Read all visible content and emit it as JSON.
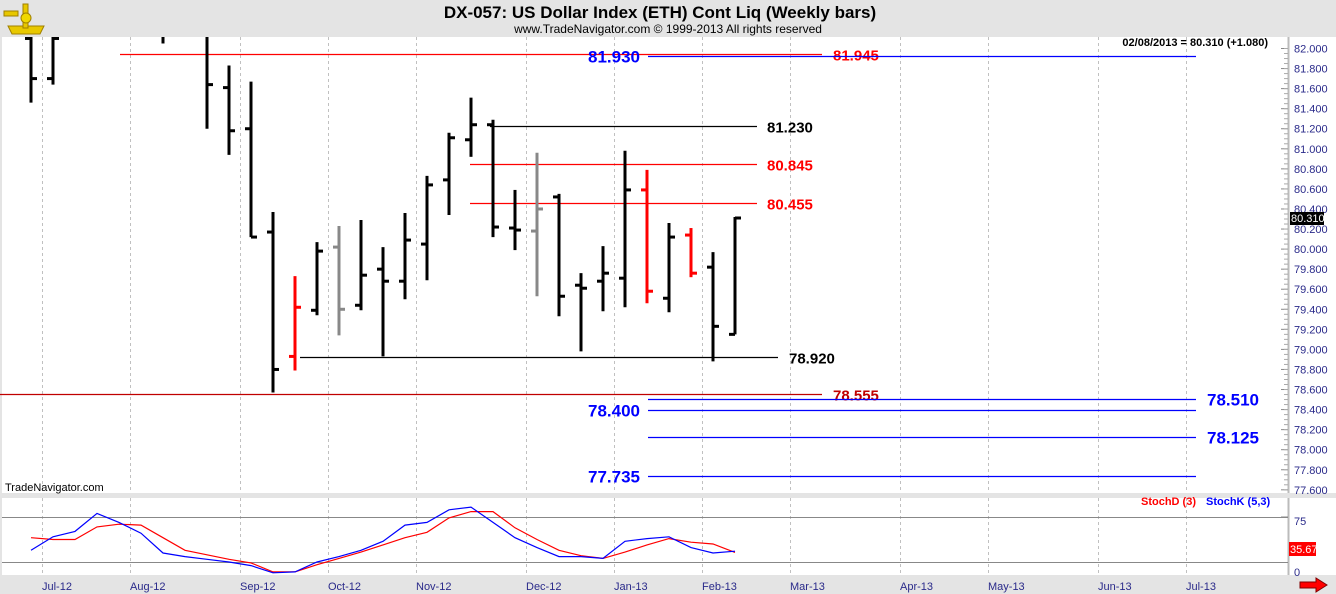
{
  "header": {
    "title": "DX-057:  US Dollar Index (ETH) Cont Liq  (Weekly bars)",
    "subtitle": "www.TradeNavigator.com © 1999-2013 All rights reserved",
    "logo": "sextant-logo"
  },
  "readout": "02/08/2013 = 80.310 (+1.080)",
  "watermark": "TradeNavigator.com",
  "last_price_tag": "80.310",
  "stoch": {
    "d_label": "StochD (3)",
    "k_label": "StochK (5,3)",
    "last_value_tag": "35.67",
    "axis_labels": [
      "75",
      "0"
    ],
    "d_color": "#ff0000",
    "k_color": "#0000ff"
  },
  "colors": {
    "up": "#000000",
    "down": "#ff0000",
    "inside": "#888888",
    "blue_level": "#0000ff",
    "red_level": "#ff0000",
    "black_level": "#000000"
  },
  "scroll_arrow_icon": "red-right-arrow-icon",
  "chart_data": {
    "type": "ohlc",
    "title": "DX-057:  US Dollar Index (ETH) Cont Liq  (Weekly bars)",
    "ylim": [
      77.6,
      82.0
    ],
    "y_ticks": [
      "82.000",
      "81.800",
      "81.600",
      "81.400",
      "81.200",
      "81.000",
      "80.800",
      "80.600",
      "80.400",
      "80.200",
      "80.000",
      "79.800",
      "79.600",
      "79.400",
      "79.200",
      "79.000",
      "78.800",
      "78.600",
      "78.400",
      "78.200",
      "78.000",
      "77.800",
      "77.600"
    ],
    "x_labels": [
      "Jul-12",
      "Aug-12",
      "Sep-12",
      "Oct-12",
      "Nov-12",
      "Dec-12",
      "Jan-13",
      "Feb-13",
      "Mar-13",
      "Apr-13",
      "May-13",
      "Jun-13",
      "Jul-13"
    ],
    "grid": "vertical dashed at month starts",
    "bars": [
      {
        "date": "2012-06-29",
        "o": 82.1,
        "h": 82.2,
        "l": 81.46,
        "c": 81.7,
        "color": "up"
      },
      {
        "date": "2012-07-06",
        "o": 81.7,
        "h": 82.2,
        "l": 81.64,
        "c": 82.1,
        "color": "up"
      },
      {
        "date": "2012-08-10",
        "o": 82.3,
        "h": 82.5,
        "l": 82.05,
        "c": 82.2,
        "color": "up"
      },
      {
        "date": "2012-08-24",
        "o": 82.2,
        "h": 82.4,
        "l": 81.2,
        "c": 81.64,
        "color": "up"
      },
      {
        "date": "2012-08-31",
        "o": 81.61,
        "h": 81.83,
        "l": 80.94,
        "c": 81.18,
        "color": "up"
      },
      {
        "date": "2012-09-07",
        "o": 81.2,
        "h": 81.67,
        "l": 80.12,
        "c": 80.12,
        "color": "up"
      },
      {
        "date": "2012-09-14",
        "o": 80.17,
        "h": 80.37,
        "l": 78.57,
        "c": 78.8,
        "color": "up"
      },
      {
        "date": "2012-09-21",
        "o": 78.93,
        "h": 79.73,
        "l": 78.79,
        "c": 79.42,
        "color": "down"
      },
      {
        "date": "2012-09-28",
        "o": 79.39,
        "h": 80.07,
        "l": 79.34,
        "c": 79.98,
        "color": "up"
      },
      {
        "date": "2012-10-05",
        "o": 80.02,
        "h": 80.23,
        "l": 79.14,
        "c": 79.4,
        "color": "inside"
      },
      {
        "date": "2012-10-12",
        "o": 79.44,
        "h": 80.29,
        "l": 79.39,
        "c": 79.74,
        "color": "up"
      },
      {
        "date": "2012-10-19",
        "o": 79.8,
        "h": 80.02,
        "l": 78.93,
        "c": 79.68,
        "color": "up"
      },
      {
        "date": "2012-10-26",
        "o": 79.68,
        "h": 80.36,
        "l": 79.5,
        "c": 80.09,
        "color": "up"
      },
      {
        "date": "2012-11-02",
        "o": 80.05,
        "h": 80.73,
        "l": 79.69,
        "c": 80.64,
        "color": "up"
      },
      {
        "date": "2012-11-09",
        "o": 80.69,
        "h": 81.16,
        "l": 80.34,
        "c": 81.11,
        "color": "up"
      },
      {
        "date": "2012-11-16",
        "o": 81.09,
        "h": 81.51,
        "l": 80.92,
        "c": 81.24,
        "color": "up"
      },
      {
        "date": "2012-11-23",
        "o": 81.24,
        "h": 81.29,
        "l": 80.12,
        "c": 80.22,
        "color": "up"
      },
      {
        "date": "2012-11-30",
        "o": 80.21,
        "h": 80.59,
        "l": 79.99,
        "c": 80.19,
        "color": "up"
      },
      {
        "date": "2012-12-07",
        "o": 80.18,
        "h": 80.96,
        "l": 79.53,
        "c": 80.4,
        "color": "inside"
      },
      {
        "date": "2012-12-14",
        "o": 80.52,
        "h": 80.55,
        "l": 79.33,
        "c": 79.53,
        "color": "up"
      },
      {
        "date": "2012-12-21",
        "o": 79.64,
        "h": 79.76,
        "l": 78.98,
        "c": 79.61,
        "color": "up"
      },
      {
        "date": "2012-12-28",
        "o": 79.68,
        "h": 80.03,
        "l": 79.38,
        "c": 79.76,
        "color": "up"
      },
      {
        "date": "2013-01-04",
        "o": 79.71,
        "h": 80.98,
        "l": 79.42,
        "c": 80.59,
        "color": "up"
      },
      {
        "date": "2013-01-11",
        "o": 80.59,
        "h": 80.79,
        "l": 79.46,
        "c": 79.58,
        "color": "down"
      },
      {
        "date": "2013-01-18",
        "o": 79.51,
        "h": 80.26,
        "l": 79.37,
        "c": 80.12,
        "color": "up"
      },
      {
        "date": "2013-01-25",
        "o": 80.14,
        "h": 80.21,
        "l": 79.72,
        "c": 79.76,
        "color": "down"
      },
      {
        "date": "2013-02-01",
        "o": 79.82,
        "h": 79.97,
        "l": 78.88,
        "c": 79.23,
        "color": "up"
      },
      {
        "date": "2013-02-08",
        "o": 79.15,
        "h": 80.32,
        "l": 79.15,
        "c": 80.31,
        "color": "up"
      }
    ],
    "levels": [
      {
        "price": 81.945,
        "label": "81.945",
        "color": "red_level"
      },
      {
        "price": 81.93,
        "label": "81.930",
        "color": "blue_level"
      },
      {
        "price": 81.23,
        "label": "81.230",
        "color": "black_level"
      },
      {
        "price": 80.845,
        "label": "80.845",
        "color": "red_level"
      },
      {
        "price": 80.455,
        "label": "80.455",
        "color": "red_level"
      },
      {
        "price": 78.92,
        "label": "78.920",
        "color": "black_level"
      },
      {
        "price": 78.555,
        "label": "78.555",
        "color": "red_level"
      },
      {
        "price": 78.51,
        "label": "78.510",
        "color": "blue_level"
      },
      {
        "price": 78.4,
        "label": "78.400",
        "color": "blue_level"
      },
      {
        "price": 78.125,
        "label": "78.125",
        "color": "blue_level"
      },
      {
        "price": 77.735,
        "label": "77.735",
        "color": "blue_level"
      }
    ],
    "stochastic": {
      "start_date": "2012-06-29",
      "ylim": [
        0,
        100
      ],
      "ref_lines": [
        75,
        25
      ],
      "K": [
        38,
        53,
        59,
        79,
        69,
        57,
        35,
        31,
        28,
        25,
        21,
        13,
        14,
        25,
        31,
        38,
        48,
        66,
        69,
        83,
        86,
        69,
        52,
        41,
        31,
        31,
        29,
        48,
        51,
        53,
        41,
        35,
        37
      ],
      "D": [
        52,
        50,
        50,
        64,
        67,
        66,
        52,
        38,
        33,
        28,
        24,
        14,
        14,
        22,
        29,
        36,
        44,
        52,
        58,
        74,
        81,
        81,
        63,
        50,
        38,
        32,
        29,
        36,
        44,
        51,
        47,
        45,
        35.67
      ]
    }
  }
}
